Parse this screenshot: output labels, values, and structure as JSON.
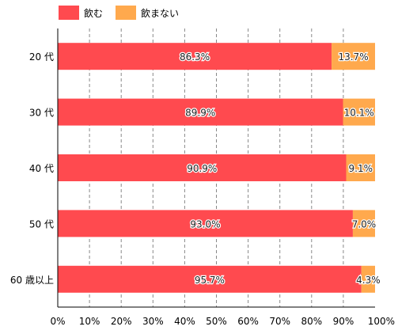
{
  "chart_data": {
    "type": "bar",
    "orientation": "horizontal",
    "stacked": true,
    "categories": [
      "20 代",
      "30 代",
      "40 代",
      "50 代",
      "60 歳以上"
    ],
    "series": [
      {
        "name": "飲む",
        "color": "#ff4a4f",
        "values": [
          86.3,
          89.9,
          90.9,
          93.0,
          95.7
        ]
      },
      {
        "name": "飲まない",
        "color": "#ffa94d",
        "values": [
          13.7,
          10.1,
          9.1,
          7.0,
          4.3
        ]
      }
    ],
    "data_labels": [
      [
        "86.3%",
        "89.9%",
        "90.9%",
        "93.0%",
        "95.7%"
      ],
      [
        "13.7%",
        "10.1%",
        "9.1%",
        "7.0%",
        "4.3%"
      ]
    ],
    "xlim": [
      0,
      100
    ],
    "xticks": [
      "0%",
      "10%",
      "20%",
      "30%",
      "40%",
      "50%",
      "60%",
      "70%",
      "80%",
      "90%",
      "100%"
    ],
    "grid": "vertical dashed",
    "legend": "top-left"
  }
}
